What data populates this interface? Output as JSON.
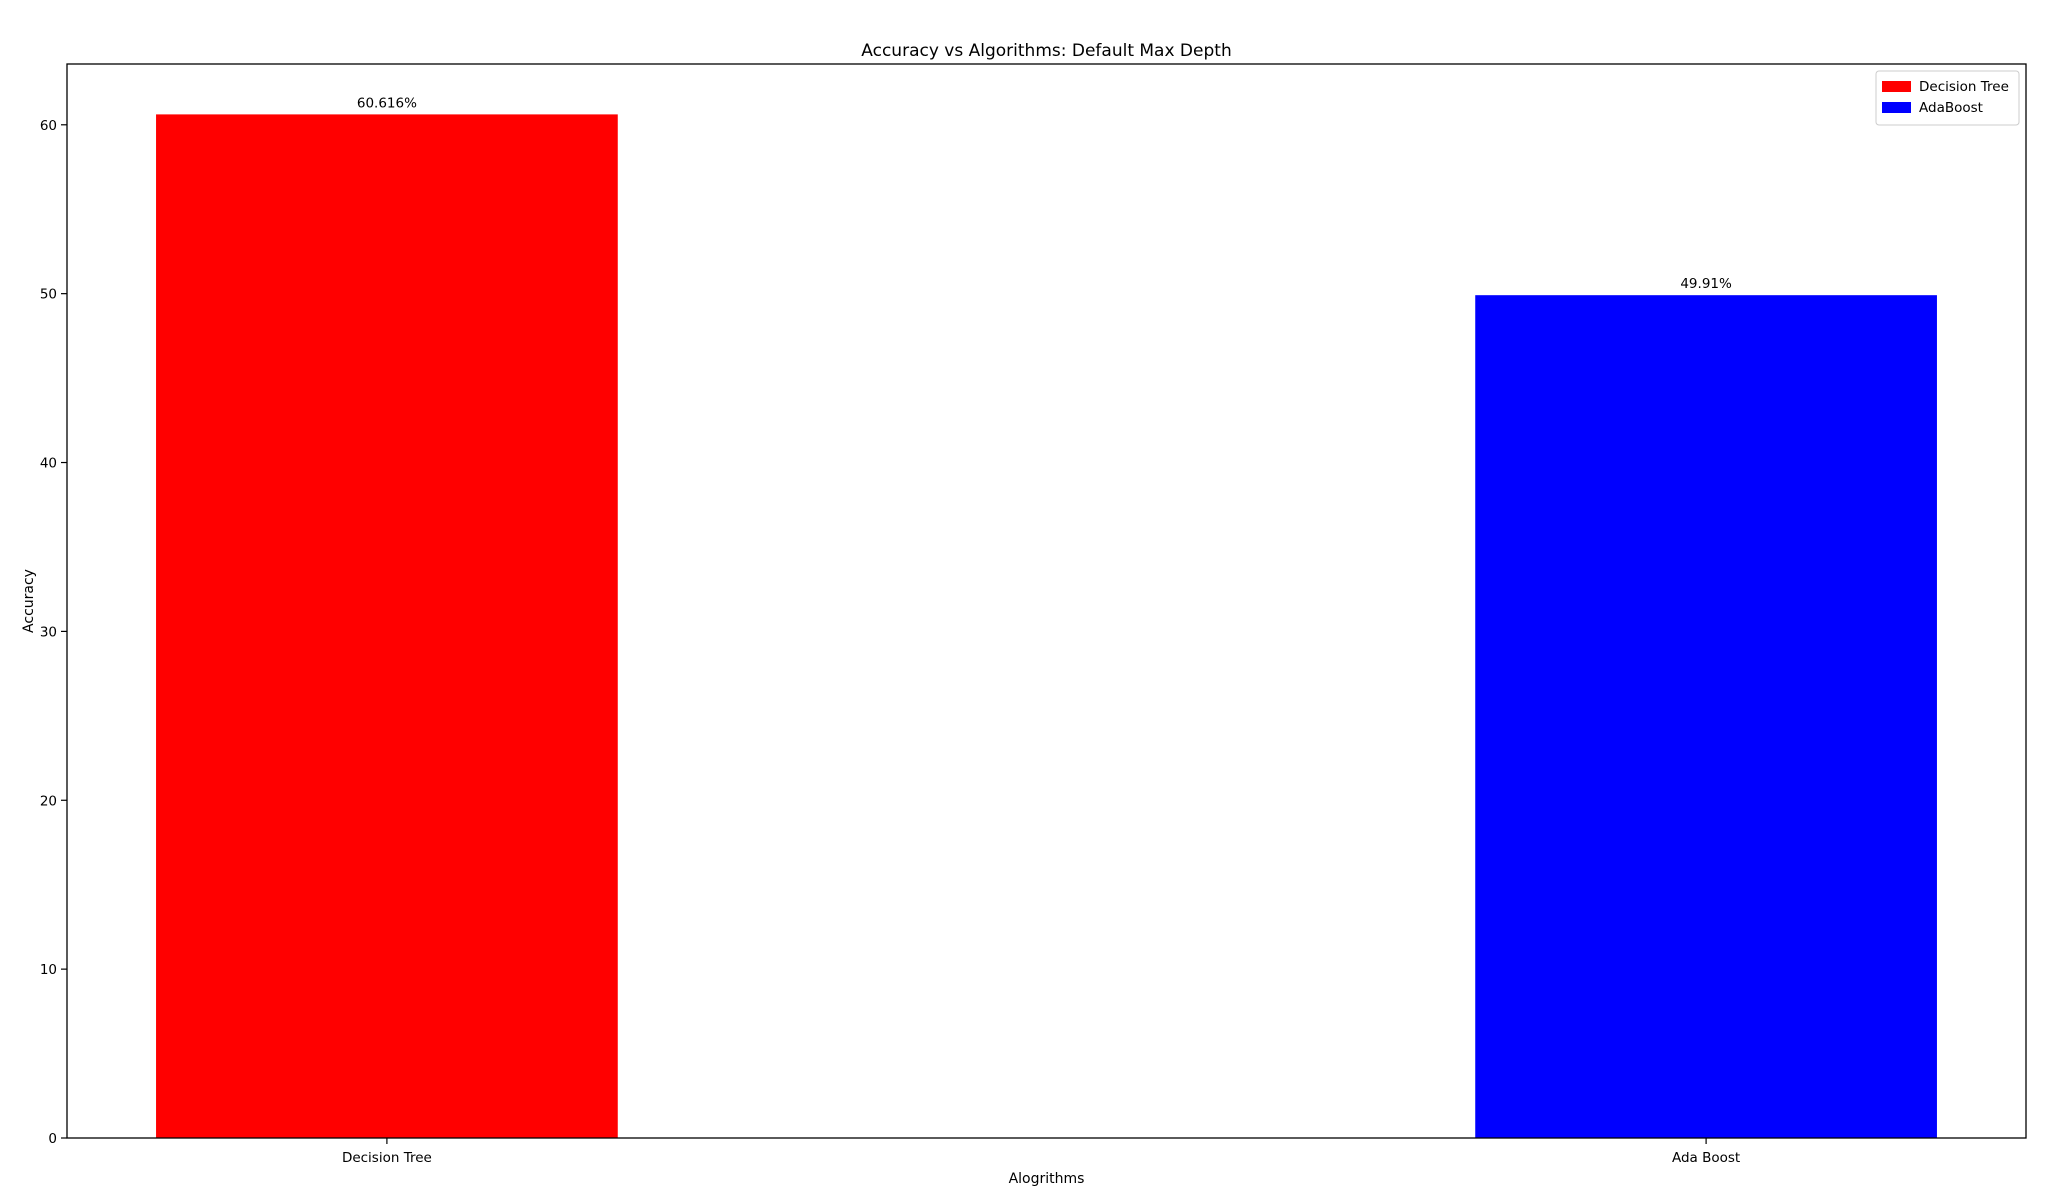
{
  "chart_data": {
    "type": "bar",
    "title": "Accuracy vs Algorithms: Default Max Depth",
    "xlabel": "Alogrithms",
    "ylabel": "Accuracy",
    "categories": [
      "Decision Tree",
      "Ada Boost"
    ],
    "values": [
      60.616,
      49.91
    ],
    "value_labels": [
      "60.616%",
      "49.91%"
    ],
    "colors": [
      "#ff0000",
      "#0000ff"
    ],
    "ylim": [
      0,
      63.6
    ],
    "yticks": [
      0,
      10,
      20,
      30,
      40,
      50,
      60
    ],
    "grid": false,
    "legend": {
      "placement": "top-right",
      "entries": [
        {
          "label": "Decision Tree",
          "color": "#ff0000"
        },
        {
          "label": "AdaBoost",
          "color": "#0000ff"
        }
      ]
    }
  }
}
